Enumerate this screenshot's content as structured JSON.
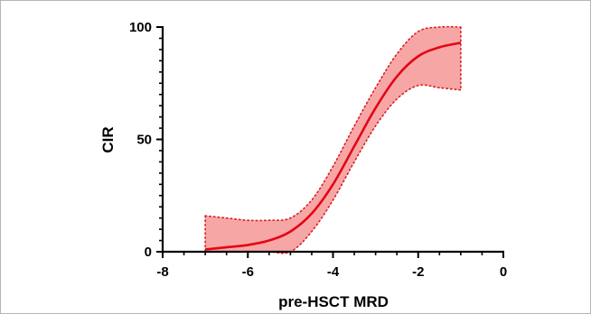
{
  "chart_data": {
    "type": "line",
    "title": "",
    "xlabel": "pre-HSCT MRD",
    "ylabel": "CIR",
    "xlim": [
      -8,
      0
    ],
    "ylim": [
      0,
      100
    ],
    "x_ticks": [
      "-8",
      "-6",
      "-4",
      "-2",
      "0"
    ],
    "y_ticks": [
      "0",
      "50",
      "100"
    ],
    "grid": false,
    "series": [
      {
        "x": [
          -7,
          -6.5,
          -6,
          -5.5,
          -5,
          -4.5,
          -4,
          -3.5,
          -3,
          -2.5,
          -2,
          -1.5,
          -1
        ],
        "values": [
          1,
          2,
          3,
          5,
          9,
          17,
          30,
          47,
          64,
          78,
          87,
          91,
          93
        ],
        "color": "#e30613"
      }
    ],
    "band": {
      "x": [
        -7,
        -6.5,
        -6,
        -5.5,
        -5,
        -4.5,
        -4,
        -3.5,
        -3,
        -2.5,
        -2,
        -1.5,
        -1
      ],
      "upper": [
        16,
        15,
        14,
        14,
        15,
        23,
        38,
        56,
        73,
        88,
        98,
        100,
        100
      ],
      "lower": [
        0,
        0,
        0,
        0,
        0,
        9,
        23,
        40,
        56,
        68,
        74,
        73,
        72
      ],
      "fill_color": "#f7a6a6",
      "edge_color": "#d81f1f"
    }
  }
}
